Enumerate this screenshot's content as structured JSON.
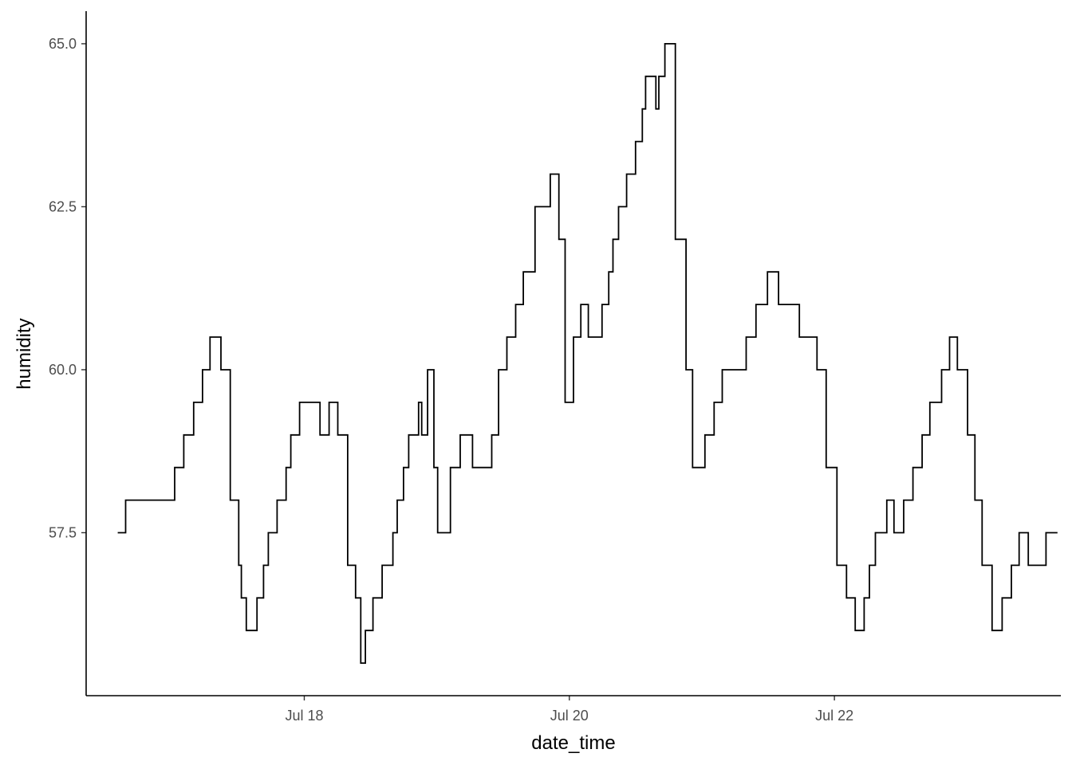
{
  "chart_data": {
    "type": "line",
    "title": "",
    "xlabel": "date_time",
    "ylabel": "humidity",
    "x_unit": "date",
    "xlim": [
      "2017-07-16T08:30",
      "2017-07-23T17:00"
    ],
    "ylim": [
      55.0,
      65.5
    ],
    "x_ticks": [
      {
        "value": "2017-07-18T00:00",
        "label": "Jul 18"
      },
      {
        "value": "2017-07-20T00:00",
        "label": "Jul 20"
      },
      {
        "value": "2017-07-22T00:00",
        "label": "Jul 22"
      }
    ],
    "y_ticks": [
      {
        "value": 57.5,
        "label": "57.5"
      },
      {
        "value": 60.0,
        "label": "60.0"
      },
      {
        "value": 62.5,
        "label": "62.5"
      },
      {
        "value": 65.0,
        "label": "65.0"
      }
    ],
    "grid": false,
    "legend": "none",
    "line_color": "#000000",
    "series": [
      {
        "x": [
          "2017-07-16T14:13",
          "2017-07-16T15:12",
          "2017-07-16T15:39",
          "2017-07-16T20:24",
          "2017-07-17T00:32",
          "2017-07-17T02:11",
          "2017-07-17T03:58",
          "2017-07-17T05:34",
          "2017-07-17T06:56",
          "2017-07-17T08:55",
          "2017-07-17T10:36",
          "2017-07-17T12:08",
          "2017-07-17T12:36",
          "2017-07-17T13:30",
          "2017-07-17T14:34",
          "2017-07-17T15:26",
          "2017-07-17T16:37",
          "2017-07-17T17:29",
          "2017-07-17T18:22",
          "2017-07-17T19:05",
          "2017-07-17T20:43",
          "2017-07-17T21:34",
          "2017-07-17T23:09",
          "2017-07-18T02:51",
          "2017-07-18T04:30",
          "2017-07-18T06:04",
          "2017-07-18T07:52",
          "2017-07-18T09:17",
          "2017-07-18T10:14",
          "2017-07-18T11:04",
          "2017-07-18T12:26",
          "2017-07-18T14:06",
          "2017-07-18T14:57",
          "2017-07-18T16:03",
          "2017-07-18T16:50",
          "2017-07-18T17:58",
          "2017-07-18T18:55",
          "2017-07-18T20:18",
          "2017-07-18T20:42",
          "2017-07-18T21:16",
          "2017-07-18T22:20",
          "2017-07-18T23:28",
          "2017-07-19T00:09",
          "2017-07-19T02:28",
          "2017-07-19T04:14",
          "2017-07-19T06:28",
          "2017-07-19T08:00",
          "2017-07-19T09:57",
          "2017-07-19T11:11",
          "2017-07-19T12:41",
          "2017-07-19T14:17",
          "2017-07-19T15:40",
          "2017-07-19T17:47",
          "2017-07-19T20:33",
          "2017-07-19T22:06",
          "2017-07-19T23:14",
          "2017-07-20T00:45",
          "2017-07-20T02:05",
          "2017-07-20T03:26",
          "2017-07-20T04:26",
          "2017-07-20T05:55",
          "2017-07-20T07:08",
          "2017-07-20T07:54",
          "2017-07-20T08:55",
          "2017-07-20T10:22",
          "2017-07-20T11:59",
          "2017-07-20T13:13",
          "2017-07-20T13:48",
          "2017-07-20T15:40",
          "2017-07-20T16:12",
          "2017-07-20T17:18",
          "2017-07-20T19:12",
          "2017-07-20T21:08",
          "2017-07-20T22:19",
          "2017-07-21T00:33",
          "2017-07-21T02:13",
          "2017-07-21T03:41",
          "2017-07-21T06:12",
          "2017-07-21T08:01",
          "2017-07-21T09:48",
          "2017-07-21T11:53",
          "2017-07-21T13:53",
          "2017-07-21T16:11",
          "2017-07-21T17:39",
          "2017-07-21T19:20",
          "2017-07-21T20:51",
          "2017-07-21T22:30",
          "2017-07-22T00:27",
          "2017-07-22T02:11",
          "2017-07-22T03:46",
          "2017-07-22T05:23",
          "2017-07-22T06:20",
          "2017-07-22T07:25",
          "2017-07-22T09:29",
          "2017-07-22T10:47",
          "2017-07-22T12:33",
          "2017-07-22T14:13",
          "2017-07-22T15:53",
          "2017-07-22T17:17",
          "2017-07-22T19:24",
          "2017-07-22T20:51",
          "2017-07-22T22:16",
          "2017-07-23T00:07",
          "2017-07-23T01:27",
          "2017-07-23T02:45",
          "2017-07-23T04:33",
          "2017-07-23T06:22",
          "2017-07-23T08:03",
          "2017-07-23T09:27",
          "2017-07-23T11:06",
          "2017-07-23T12:11",
          "2017-07-23T14:19",
          "2017-07-23T15:41",
          "2017-07-23T16:24"
        ],
        "values": [
          57.5,
          57.5,
          58.0,
          58.0,
          58.5,
          59.0,
          59.5,
          60.0,
          60.5,
          60.0,
          58.0,
          57.0,
          56.5,
          56.0,
          56.0,
          56.5,
          57.0,
          57.5,
          57.5,
          58.0,
          58.5,
          59.0,
          59.5,
          59.0,
          59.5,
          59.0,
          57.0,
          56.5,
          55.5,
          56.0,
          56.5,
          57.0,
          57.0,
          57.5,
          58.0,
          58.5,
          59.0,
          59.0,
          59.5,
          59.0,
          60.0,
          58.5,
          57.5,
          58.5,
          59.0,
          58.5,
          58.5,
          59.0,
          60.0,
          60.5,
          61.0,
          61.5,
          62.5,
          63.0,
          62.0,
          59.5,
          60.5,
          61.0,
          60.5,
          60.5,
          61.0,
          61.5,
          62.0,
          62.5,
          63.0,
          63.5,
          64.0,
          64.5,
          64.0,
          64.5,
          65.0,
          62.0,
          60.0,
          58.5,
          59.0,
          59.5,
          60.0,
          60.0,
          60.5,
          61.0,
          61.5,
          61.0,
          61.0,
          60.5,
          60.5,
          60.0,
          58.5,
          57.0,
          56.5,
          56.0,
          56.5,
          57.0,
          57.5,
          58.0,
          57.5,
          58.0,
          58.5,
          59.0,
          59.5,
          60.0,
          60.5,
          60.0,
          59.0,
          58.0,
          57.0,
          56.0,
          56.5,
          57.0,
          57.5,
          57.0,
          57.0,
          57.5,
          57.5,
          57.5
        ]
      }
    ]
  }
}
